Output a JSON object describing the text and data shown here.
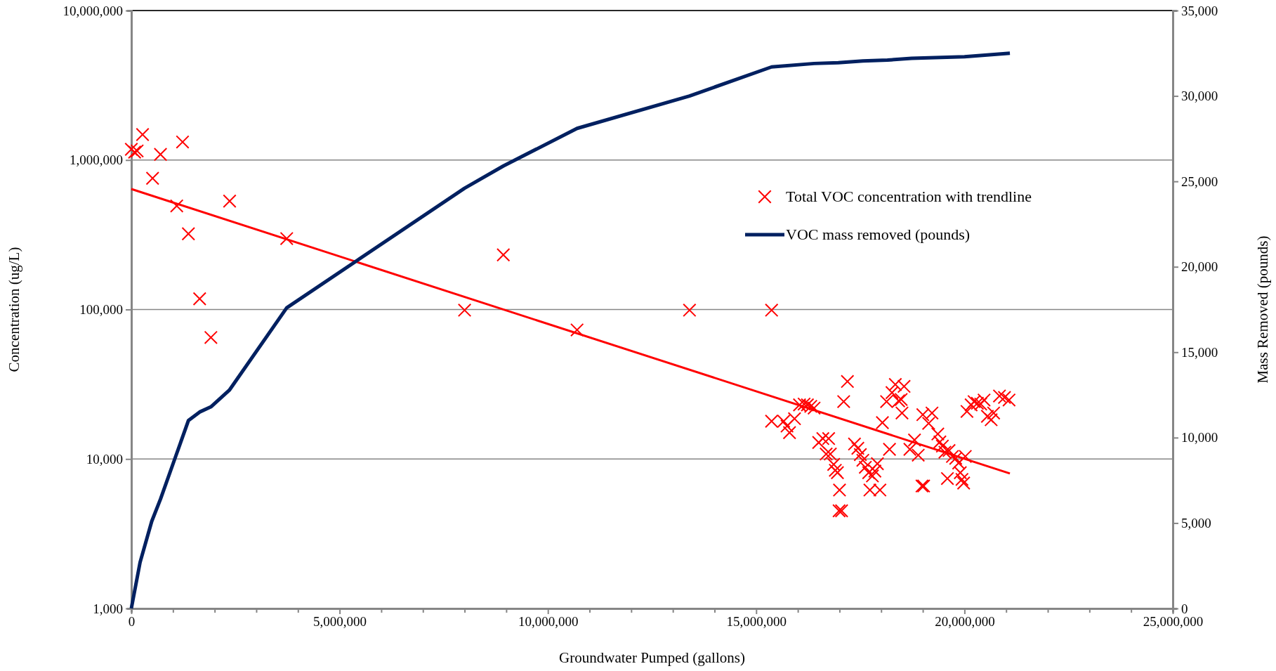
{
  "chart_data": {
    "type": "scatter",
    "xlabel": "Groundwater Pumped (gallons)",
    "ylabel": "Concentration (ug/L)",
    "y2label": "Mass Removed (pounds)",
    "log": "y",
    "grid": "y",
    "legend": "top right",
    "xlim": [
      0,
      25000000
    ],
    "xticks": [
      {
        "value": 0,
        "label": "0"
      },
      {
        "value": 1000000,
        "label": null
      },
      {
        "value": 2000000,
        "label": null
      },
      {
        "value": 3000000,
        "label": null
      },
      {
        "value": 4000000,
        "label": null
      },
      {
        "value": 5000000,
        "label": "5,000,000"
      },
      {
        "value": 6000000,
        "label": null
      },
      {
        "value": 7000000,
        "label": null
      },
      {
        "value": 8000000,
        "label": null
      },
      {
        "value": 9000000,
        "label": null
      },
      {
        "value": 10000000,
        "label": "10,000,000"
      },
      {
        "value": 11000000,
        "label": null
      },
      {
        "value": 12000000,
        "label": null
      },
      {
        "value": 13000000,
        "label": null
      },
      {
        "value": 14000000,
        "label": null
      },
      {
        "value": 15000000,
        "label": "15,000,000"
      },
      {
        "value": 16000000,
        "label": null
      },
      {
        "value": 17000000,
        "label": null
      },
      {
        "value": 18000000,
        "label": null
      },
      {
        "value": 19000000,
        "label": null
      },
      {
        "value": 20000000,
        "label": "20,000,000"
      },
      {
        "value": 21000000,
        "label": null
      },
      {
        "value": 22000000,
        "label": null
      },
      {
        "value": 23000000,
        "label": null
      },
      {
        "value": 24000000,
        "label": null
      },
      {
        "value": 25000000,
        "label": "25,000,000"
      }
    ],
    "ylim": [
      1000,
      10000000
    ],
    "yticks": [
      {
        "value": 1000,
        "label": "1,000"
      },
      {
        "value": 10000,
        "label": "10,000"
      },
      {
        "value": 100000,
        "label": "100,000"
      },
      {
        "value": 1000000,
        "label": "1,000,000"
      },
      {
        "value": 10000000,
        "label": "10,000,000"
      }
    ],
    "y2lim": [
      0,
      35000
    ],
    "y2ticks": [
      {
        "value": 0,
        "label": "0"
      },
      {
        "value": 5000,
        "label": "5,000"
      },
      {
        "value": 10000,
        "label": "10,000"
      },
      {
        "value": 15000,
        "label": "15,000"
      },
      {
        "value": 20000,
        "label": "20,000"
      },
      {
        "value": 25000,
        "label": "25,000"
      },
      {
        "value": 30000,
        "label": "30,000"
      },
      {
        "value": 35000,
        "label": "35,000"
      }
    ],
    "series": [
      {
        "name": "Total VOC concentration with trendline",
        "marker": "cross",
        "color": "#ff0000",
        "x": [
          0,
          80000,
          140000,
          270000,
          510000,
          700000,
          1090000,
          1230000,
          1370000,
          1640000,
          1910000,
          2360000,
          3730000,
          8000000,
          8930000,
          10700000,
          13400000,
          15370000,
          15370000,
          15660000,
          15740000,
          15800000,
          15920000,
          16040000,
          16150000,
          16230000,
          16310000,
          16390000,
          16500000,
          16600000,
          16740000,
          16680000,
          16780000,
          16860000,
          16900000,
          16950000,
          17000000,
          16990000,
          17050000,
          17100000,
          17190000,
          17360000,
          17440000,
          17500000,
          17560000,
          17620000,
          17700000,
          17730000,
          17790000,
          17850000,
          17910000,
          17970000,
          18030000,
          18130000,
          18200000,
          18260000,
          18340000,
          18420000,
          18480000,
          18500000,
          18550000,
          18690000,
          18800000,
          18890000,
          18980000,
          19020000,
          19000000,
          19140000,
          19220000,
          19360000,
          19410000,
          19470000,
          19530000,
          19590000,
          19630000,
          19710000,
          19790000,
          19860000,
          19900000,
          19940000,
          19980000,
          20020000,
          20060000,
          20160000,
          20230000,
          20310000,
          20390000,
          20470000,
          20550000,
          20640000,
          20700000,
          20840000,
          20960000,
          21070000
        ],
        "values": [
          1180000,
          1130000,
          1150000,
          1480000,
          755000,
          1090000,
          493000,
          1320000,
          321000,
          118000,
          65000,
          531000,
          298000,
          99000,
          232000,
          73000,
          99000,
          99000,
          17900,
          17900,
          16600,
          15000,
          18600,
          23000,
          23300,
          23000,
          22500,
          21900,
          12900,
          13700,
          13700,
          10800,
          10800,
          9200,
          8400,
          8100,
          6200,
          4500,
          4500,
          24200,
          33000,
          12600,
          11800,
          10700,
          9800,
          8800,
          8100,
          6200,
          7700,
          8300,
          9300,
          6200,
          17500,
          24200,
          11600,
          27800,
          31500,
          24500,
          25000,
          20300,
          30600,
          11600,
          13400,
          10600,
          6600,
          6600,
          19800,
          17300,
          20300,
          14700,
          13000,
          12200,
          11100,
          7400,
          11400,
          10400,
          10100,
          9400,
          8100,
          7300,
          6900,
          10400,
          20800,
          23000,
          24200,
          23600,
          23300,
          24800,
          19300,
          18300,
          20300,
          26400,
          25800,
          24800
        ]
      },
      {
        "type": "line",
        "marker": "none",
        "line_style": "solid",
        "color": "#ff0000",
        "x": [
          0,
          21090000
        ],
        "values": [
          640000,
          8000
        ]
      },
      {
        "name": "VOC mass removed (pounds)",
        "type": "line",
        "axis": "y2",
        "marker": "none",
        "line_style": "solid",
        "color": "#002060",
        "x": [
          0,
          210000,
          490000,
          700000,
          1050000,
          1370000,
          1640000,
          1910000,
          2360000,
          3730000,
          8000000,
          8930000,
          10700000,
          13400000,
          15370000,
          16390000,
          16970000,
          17560000,
          18150000,
          18730000,
          20000000,
          21090000
        ],
        "values": [
          0,
          2700,
          5100,
          6400,
          8800,
          11000,
          11500,
          11800,
          12800,
          17600,
          24600,
          25900,
          28100,
          30000,
          31700,
          31900,
          31950,
          32050,
          32100,
          32200,
          32300,
          32500
        ]
      }
    ]
  }
}
